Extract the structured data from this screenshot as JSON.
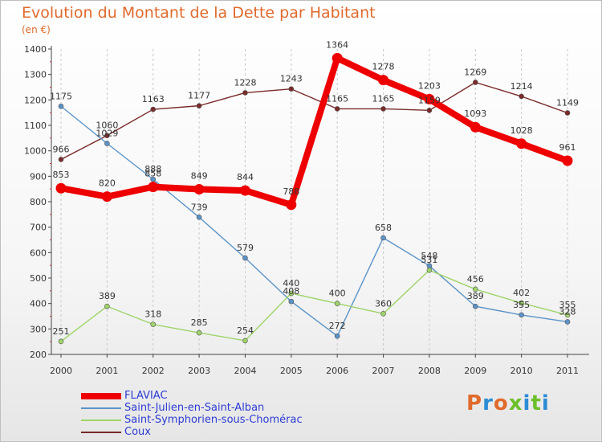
{
  "header": {
    "title": "Evolution du Montant de la Dette par Habitant",
    "subtitle": "(en €)"
  },
  "logo": {
    "text": "Proxiti",
    "colors": [
      "#e06a2c",
      "#2c8cd4",
      "#6cbf2c"
    ]
  },
  "chart_data": {
    "type": "line",
    "title": "Evolution du Montant de la Dette par Habitant",
    "ylabel": "(en €)",
    "xlabel": "",
    "x": [
      "2000",
      "2001",
      "2002",
      "2003",
      "2004",
      "2005",
      "2006",
      "2007",
      "2008",
      "2009",
      "2010",
      "2011"
    ],
    "ylim": [
      200,
      1400
    ],
    "yticks": [
      200,
      300,
      400,
      500,
      600,
      700,
      800,
      900,
      1000,
      1100,
      1200,
      1300,
      1400
    ],
    "grid": "vertical dashed",
    "legend_position": "bottom-left",
    "series": [
      {
        "name": "FLAVIAC",
        "color": "#ee0000",
        "width": 8,
        "values": [
          853,
          820,
          858,
          849,
          844,
          788,
          1364,
          1278,
          1203,
          1093,
          1028,
          961
        ]
      },
      {
        "name": "Saint-Julien-en-Saint-Alban",
        "color": "#5b93c8",
        "width": 1.4,
        "values": [
          1175,
          1029,
          888,
          739,
          579,
          408,
          272,
          658,
          548,
          389,
          355,
          328
        ]
      },
      {
        "name": "Saint-Symphorien-sous-Chomérac",
        "color": "#9ed46a",
        "width": 1.4,
        "values": [
          251,
          389,
          318,
          285,
          254,
          440,
          400,
          360,
          531,
          456,
          402,
          355
        ]
      },
      {
        "name": "Coux",
        "color": "#7a2a2a",
        "width": 1.4,
        "values": [
          966,
          1060,
          1163,
          1177,
          1228,
          1243,
          1165,
          1165,
          1159,
          1269,
          1214,
          1149
        ]
      }
    ]
  }
}
